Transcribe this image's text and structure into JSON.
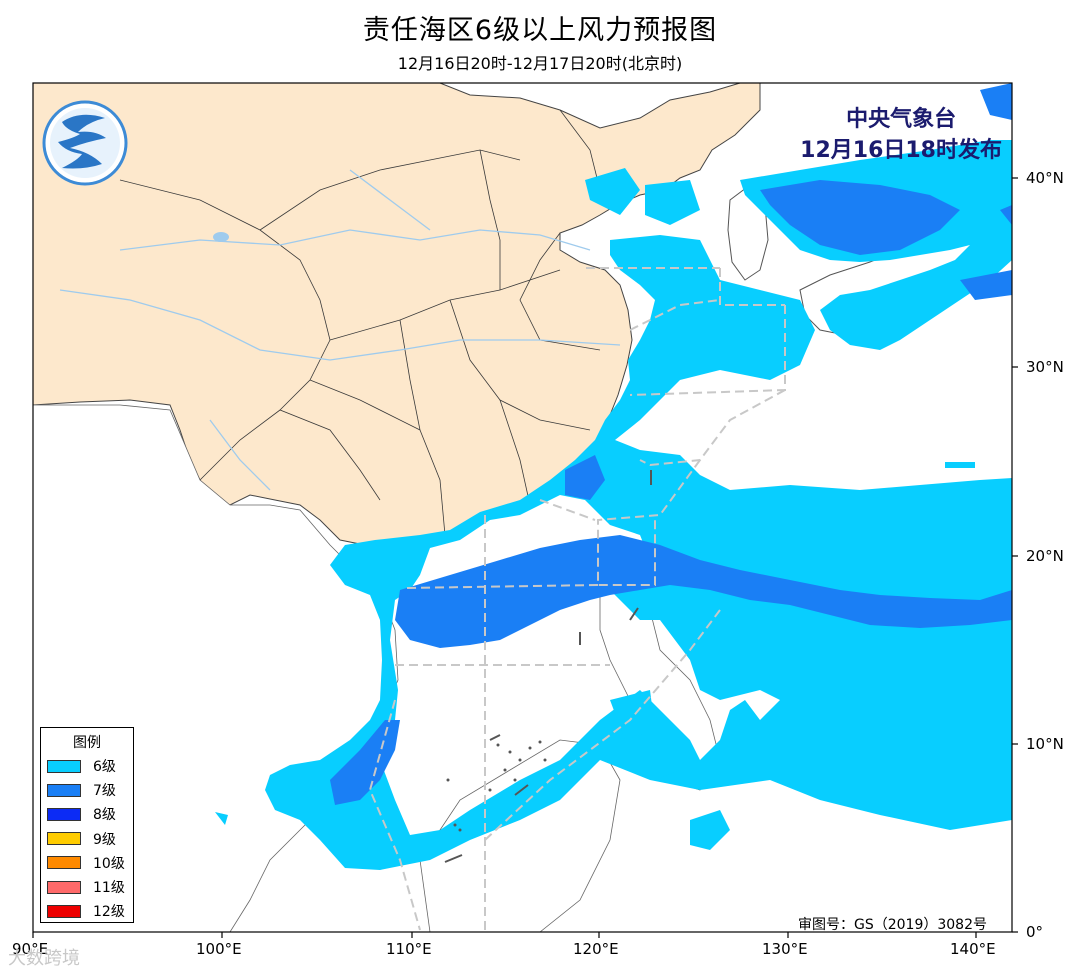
{
  "title": "责任海区6级以上风力预报图",
  "subtitle": "12月16日20时-12月17日20时(北京时)",
  "issuer": {
    "line1": "中央气象台",
    "line2": "12月16日18时发布"
  },
  "legend": {
    "title": "图例",
    "items": [
      {
        "label": "6级",
        "color": "#08ceff"
      },
      {
        "label": "7级",
        "color": "#1a7ff5"
      },
      {
        "label": "8级",
        "color": "#0c2bf5"
      },
      {
        "label": "9级",
        "color": "#ffcc00"
      },
      {
        "label": "10级",
        "color": "#ff8a00"
      },
      {
        "label": "11级",
        "color": "#ff6a6a"
      },
      {
        "label": "12级",
        "color": "#ee0000"
      }
    ]
  },
  "axes": {
    "lon_labels": [
      "90°E",
      "100°E",
      "110°E",
      "120°E",
      "130°E",
      "140°E"
    ],
    "lat_labels": [
      "40°N",
      "30°N",
      "20°N",
      "10°N",
      "0°"
    ]
  },
  "review_number": "审图号：GS（2019）3082号",
  "watermark": "大数跨境",
  "colors": {
    "land_china": "#fde8cc",
    "border": "#3a3a3a",
    "river": "#9fcbed",
    "zone_line": "#c8c8c8"
  }
}
